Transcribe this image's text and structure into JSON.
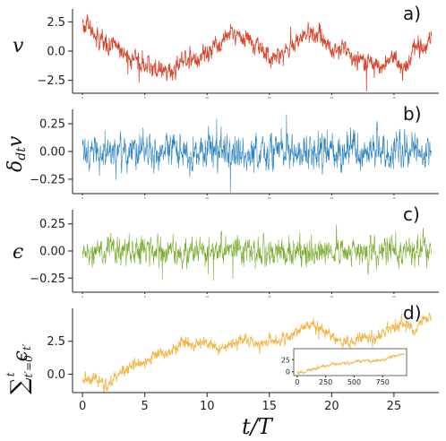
{
  "chart_data": [
    {
      "panel": "a)",
      "type": "line",
      "ylabel": "v",
      "color": "#d9432b",
      "ylim": [
        -3.6,
        3.6
      ],
      "yticks": [
        "2.5",
        "0.0",
        "−2.5"
      ],
      "ytick_values": [
        2.5,
        0.0,
        -2.5
      ],
      "xticks": [
        "0",
        "5",
        "10",
        "15",
        "20",
        "25"
      ],
      "xtick_values": [
        0,
        5,
        10,
        15,
        20,
        25
      ],
      "xlim": [
        -0.8,
        28.6
      ],
      "x_range": [
        0,
        28
      ],
      "anchors": [
        [
          0,
          2.4
        ],
        [
          0.7,
          1.8
        ],
        [
          1.5,
          0.7
        ],
        [
          2.5,
          0.8
        ],
        [
          3.2,
          -0.2
        ],
        [
          4.0,
          -0.6
        ],
        [
          5.0,
          -1.0
        ],
        [
          6.0,
          -1.6
        ],
        [
          6.8,
          -2.0
        ],
        [
          7.5,
          -1.4
        ],
        [
          8.2,
          -0.4
        ],
        [
          9.0,
          -0.8
        ],
        [
          10.0,
          -0.2
        ],
        [
          11.0,
          0.6
        ],
        [
          12.0,
          1.5
        ],
        [
          13.0,
          1.2
        ],
        [
          14.0,
          0.6
        ],
        [
          15.0,
          -0.4
        ],
        [
          16.0,
          -0.2
        ],
        [
          17.0,
          0.5
        ],
        [
          18.0,
          1.6
        ],
        [
          19.0,
          1.3
        ],
        [
          20.0,
          0.0
        ],
        [
          21.0,
          0.3
        ],
        [
          22.0,
          -0.6
        ],
        [
          23.0,
          -0.9
        ],
        [
          24.0,
          -1.3
        ],
        [
          25.0,
          -0.5
        ],
        [
          25.8,
          -1.6
        ],
        [
          26.3,
          -0.8
        ],
        [
          26.8,
          0.6
        ],
        [
          27.3,
          0.2
        ],
        [
          28.0,
          1.0
        ]
      ],
      "noise_amplitude": 0.55
    },
    {
      "panel": "b)",
      "type": "line",
      "ylabel": "δ_dt v",
      "color": "#2a82c0",
      "ylim": [
        -0.38,
        0.38
      ],
      "yticks": [
        "0.25",
        "0.00",
        "−0.25"
      ],
      "ytick_values": [
        0.25,
        0.0,
        -0.25
      ],
      "xticks": [
        "0",
        "5",
        "10",
        "15",
        "20",
        "25"
      ],
      "xtick_values": [
        0,
        5,
        10,
        15,
        20,
        25
      ],
      "xlim": [
        -0.8,
        28.6
      ],
      "x_range": [
        0,
        28
      ],
      "anchors": [
        [
          0,
          0.0
        ],
        [
          28,
          0.0
        ]
      ],
      "noise_amplitude": 0.11
    },
    {
      "panel": "c)",
      "type": "line",
      "ylabel": "ε",
      "color": "#7aab2e",
      "ylim": [
        -0.38,
        0.38
      ],
      "yticks": [
        "0.25",
        "0.00",
        "−0.25"
      ],
      "ytick_values": [
        0.25,
        0.0,
        -0.25
      ],
      "xticks": [
        "0",
        "5",
        "10",
        "15",
        "20",
        "25"
      ],
      "xtick_values": [
        0,
        5,
        10,
        15,
        20,
        25
      ],
      "xlim": [
        -0.8,
        28.6
      ],
      "x_range": [
        0,
        28
      ],
      "anchors": [
        [
          0,
          0.0
        ],
        [
          28,
          0.0
        ]
      ],
      "noise_amplitude": 0.09
    },
    {
      "panel": "d)",
      "type": "line",
      "ylabel": "Σ_{t'=0}^{t} ε_{t'}",
      "xlabel": "t/T",
      "color": "#f5b444",
      "ylim": [
        -1.4,
        5.0
      ],
      "yticks": [
        "2.5",
        "0.0"
      ],
      "ytick_values": [
        2.5,
        0.0
      ],
      "xticks": [
        "0",
        "5",
        "10",
        "15",
        "20",
        "25"
      ],
      "xtick_values": [
        0,
        5,
        10,
        15,
        20,
        25
      ],
      "xlim": [
        -0.8,
        28.6
      ],
      "x_range": [
        0,
        28
      ],
      "anchors": [
        [
          0,
          -0.5
        ],
        [
          1.0,
          -0.3
        ],
        [
          2.0,
          -0.8
        ],
        [
          3.0,
          0.1
        ],
        [
          4.0,
          0.6
        ],
        [
          5.0,
          0.9
        ],
        [
          6.0,
          1.6
        ],
        [
          7.0,
          1.6
        ],
        [
          8.0,
          2.4
        ],
        [
          9.0,
          2.2
        ],
        [
          10.0,
          2.4
        ],
        [
          11.0,
          1.9
        ],
        [
          12.0,
          2.3
        ],
        [
          13.0,
          2.7
        ],
        [
          14.0,
          2.2
        ],
        [
          15.0,
          2.6
        ],
        [
          16.0,
          2.4
        ],
        [
          17.0,
          3.1
        ],
        [
          18.5,
          3.9
        ],
        [
          19.5,
          3.1
        ],
        [
          20.5,
          2.7
        ],
        [
          21.5,
          2.3
        ],
        [
          22.5,
          2.9
        ],
        [
          23.5,
          2.7
        ],
        [
          24.5,
          3.4
        ],
        [
          25.5,
          3.6
        ],
        [
          26.2,
          3.9
        ],
        [
          26.7,
          3.1
        ],
        [
          27.2,
          4.2
        ],
        [
          28.0,
          4.4
        ]
      ],
      "noise_amplitude": 0.3,
      "inset": {
        "type": "line",
        "color": "#f5b444",
        "xlim": [
          -30,
          960
        ],
        "ylim": [
          -8,
          48
        ],
        "xticks": [
          "0",
          "250",
          "500",
          "750"
        ],
        "xtick_values": [
          0,
          250,
          500,
          750
        ],
        "yticks": [
          "25",
          "0"
        ],
        "ytick_values": [
          25,
          0
        ],
        "x_range": [
          0,
          940
        ],
        "anchors": [
          [
            0,
            0
          ],
          [
            60,
            -2
          ],
          [
            120,
            5
          ],
          [
            200,
            10
          ],
          [
            280,
            14
          ],
          [
            360,
            16
          ],
          [
            450,
            18
          ],
          [
            520,
            22
          ],
          [
            600,
            24
          ],
          [
            680,
            22
          ],
          [
            760,
            25
          ],
          [
            820,
            30
          ],
          [
            880,
            34
          ],
          [
            940,
            38
          ]
        ],
        "noise_amplitude": 2.4
      }
    }
  ]
}
